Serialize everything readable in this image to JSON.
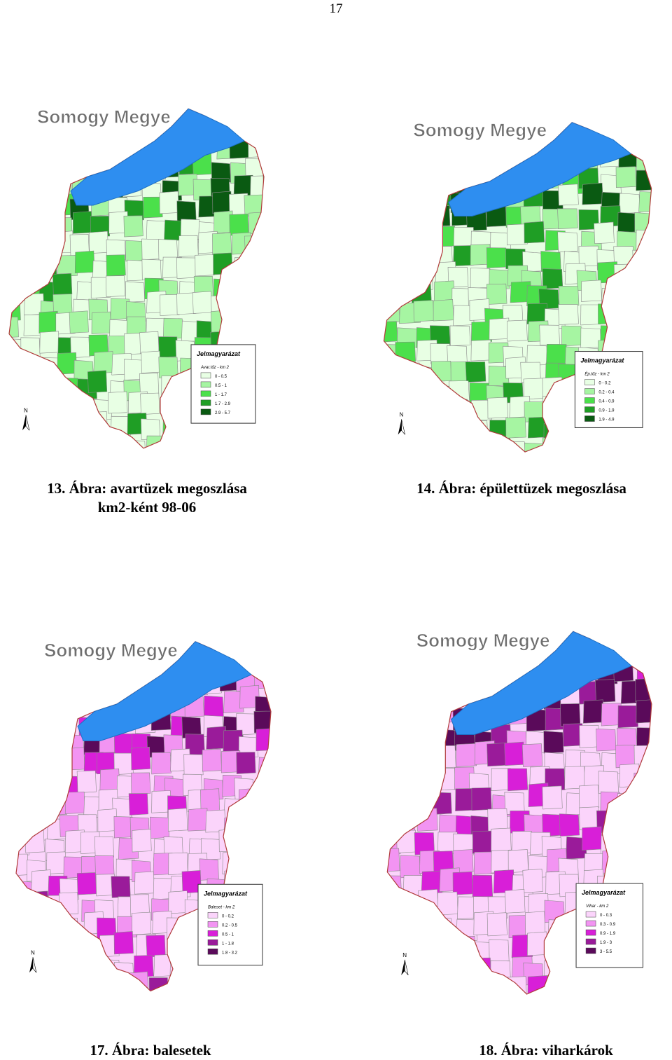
{
  "page": {
    "number": "17"
  },
  "figures": [
    {
      "id": "fig13",
      "map_title": "Somogy Megye",
      "caption_line1": "13. Ábra: avartüzek megoszlása",
      "caption_line2": "km2-ként 98-06",
      "legend_title": "Jelmagyarázat",
      "legend_subtitle": "Avar.tűz - km 2",
      "legend_items": [
        "0 - 0.5",
        "0.5 - 1",
        "1 - 1.7",
        "1.7 - 2.9",
        "2.9 - 5.7"
      ],
      "legend_colors": [
        "#e8ffe4",
        "#a6f5a2",
        "#4be04b",
        "#1f9e25",
        "#0a5a12"
      ],
      "north": "N"
    },
    {
      "id": "fig14",
      "map_title": "Somogy Megye",
      "caption_line1": "14. Ábra: épülettüzek megoszlása",
      "legend_title": "Jelmagyarázat",
      "legend_subtitle": "Ép.tűz - km 2",
      "legend_items": [
        "0 - 0.2",
        "0.2 - 0.4",
        "0.4 - 0.9",
        "0.9 - 1.9",
        "1.9 - 4.9"
      ],
      "legend_colors": [
        "#e8ffe4",
        "#a6f5a2",
        "#4be04b",
        "#1f9e25",
        "#0a5a12"
      ],
      "north": "N"
    },
    {
      "id": "fig17",
      "map_title": "Somogy Megye",
      "caption_line1": "17. Ábra: balesetek",
      "legend_title": "Jelmagyarázat",
      "legend_subtitle": "Baleset - km 2",
      "legend_items": [
        "0 - 0.2",
        "0.2 - 0.5",
        "0.5 - 1",
        "1 - 1.8",
        "1.8 - 3.2"
      ],
      "legend_colors": [
        "#fbd4fb",
        "#f294f2",
        "#d81fd8",
        "#9a1b9a",
        "#5a0a5a"
      ],
      "north": "N"
    },
    {
      "id": "fig18",
      "map_title": "Somogy Megye",
      "caption_line1": "18. Ábra: viharkárok",
      "legend_title": "Jelmagyarázat",
      "legend_subtitle": "Vihar - km 2",
      "legend_items": [
        "0 - 0.3",
        "0.3 - 0.9",
        "0.9 - 1.9",
        "1.9 - 3",
        "3 - 5.5"
      ],
      "legend_colors": [
        "#fbd4fb",
        "#f294f2",
        "#d81fd8",
        "#9a1b9a",
        "#5a0a5a"
      ],
      "north": "N"
    }
  ],
  "colors": {
    "lake": "#2e8ef0",
    "border": "#b03a3a",
    "district_line": "#8a8a8a"
  }
}
